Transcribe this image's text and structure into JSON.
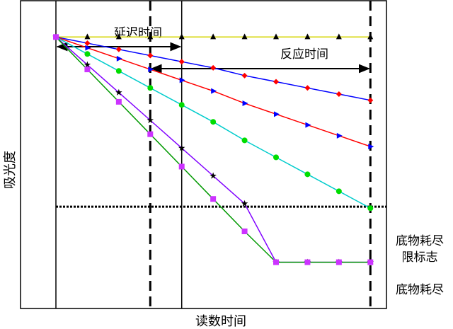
{
  "chart_data": {
    "type": "line",
    "title": "",
    "xlabel": "读数时间",
    "ylabel": "吸光度",
    "grid": false,
    "annotations": {
      "delay_label": "延迟时间",
      "reaction_label": "反应时间",
      "depletion_limit_label_line1": "底物耗尽",
      "depletion_limit_label_line2": "限标志",
      "depleted_label": "底物耗尽"
    },
    "x": [
      0,
      1,
      2,
      3,
      4,
      5,
      6,
      7,
      8,
      9,
      10
    ],
    "xlim": [
      0,
      10.5
    ],
    "ylim": [
      0,
      1
    ],
    "delay_end": 4,
    "reaction_start": 3,
    "reaction_end": 10,
    "depletion_limit": 0.33,
    "series": [
      {
        "color": "#d4d400",
        "marker_color": "#000000",
        "marker": "triangle-up",
        "values": [
          0.88,
          0.88,
          0.88,
          0.88,
          0.88,
          0.88,
          0.88,
          0.88,
          0.88,
          0.88,
          0.88
        ]
      },
      {
        "color": "#0000ff",
        "marker_color": "#ff0000",
        "marker": "diamond",
        "values": [
          0.88,
          0.86,
          0.84,
          0.82,
          0.8,
          0.78,
          0.755,
          0.735,
          0.715,
          0.695,
          0.675
        ]
      },
      {
        "color": "#ff0000",
        "marker_color": "#0000ff",
        "marker": "triangle-right",
        "values": [
          0.88,
          0.845,
          0.81,
          0.775,
          0.74,
          0.705,
          0.665,
          0.63,
          0.595,
          0.56,
          0.525
        ]
      },
      {
        "color": "#00cccc",
        "marker_color": "#00dd00",
        "marker": "circle",
        "values": [
          0.88,
          0.825,
          0.77,
          0.715,
          0.66,
          0.605,
          0.545,
          0.49,
          0.435,
          0.38,
          0.325
        ]
      },
      {
        "color": "#8000ff",
        "marker_color": "#000000",
        "marker": "star",
        "values": [
          0.88,
          0.79,
          0.7,
          0.61,
          0.52,
          0.43,
          0.34,
          0.15,
          0.15,
          0.15,
          0.15
        ]
      },
      {
        "color": "#009900",
        "marker_color": "#cc33ff",
        "marker": "square",
        "values": [
          0.88,
          0.775,
          0.67,
          0.565,
          0.46,
          0.355,
          0.25,
          0.15,
          0.15,
          0.15,
          0.15
        ]
      }
    ]
  }
}
